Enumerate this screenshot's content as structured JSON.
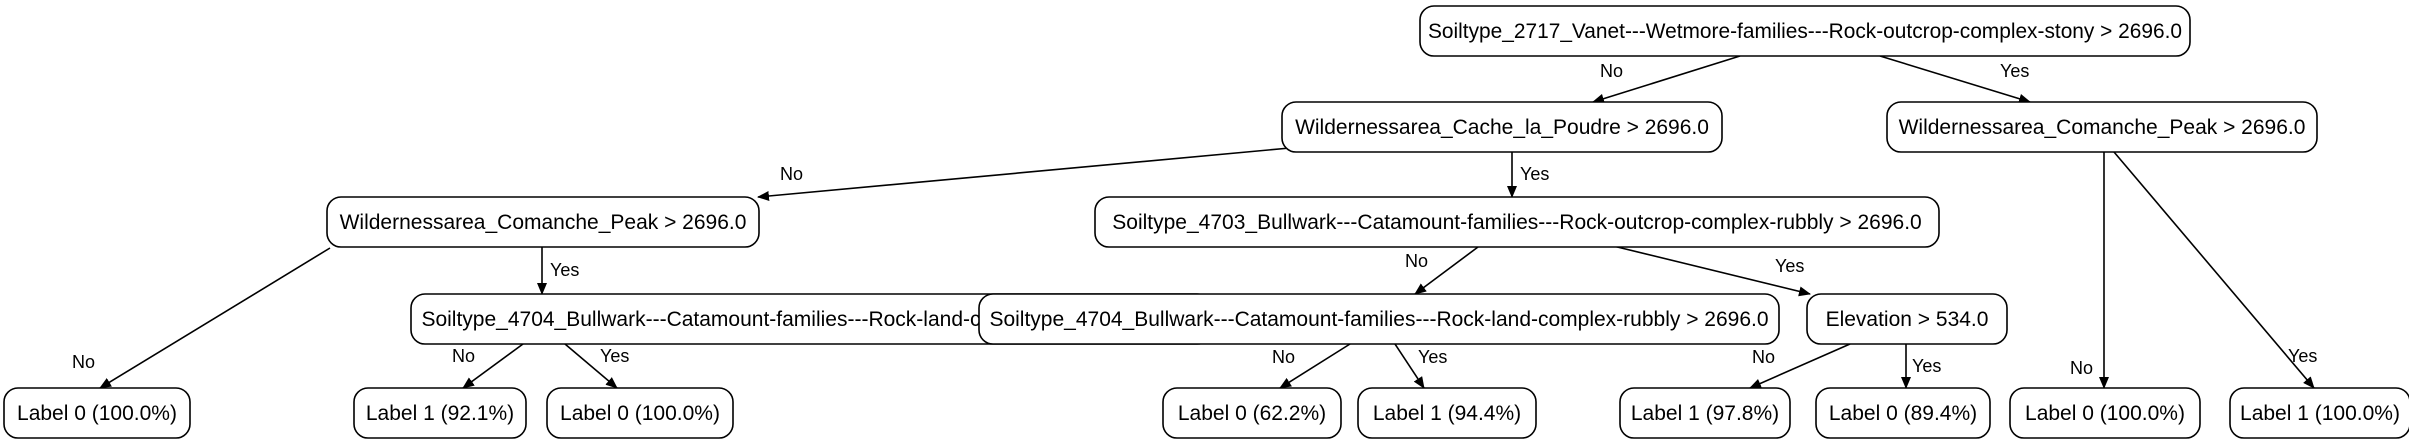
{
  "nodes": [
    {
      "id": "n0",
      "label": "Soiltype_2717_Vanet---Wetmore-families---Rock-outcrop-complex-stony > 2696.0"
    },
    {
      "id": "n1",
      "label": "Wildernessarea_Cache_la_Poudre > 2696.0"
    },
    {
      "id": "n2",
      "label": "Wildernessarea_Comanche_Peak > 2696.0"
    },
    {
      "id": "n3",
      "label": "Wildernessarea_Comanche_Peak > 2696.0"
    },
    {
      "id": "n4",
      "label": "Soiltype_4703_Bullwark---Catamount-families---Rock-outcrop-complex-rubbly > 2696.0"
    },
    {
      "id": "n5",
      "label": "Soiltype_4704_Bullwark---Catamount-families---Rock-land-complex-rubbly > 2696.0"
    },
    {
      "id": "n6",
      "label": "Soiltype_4704_Bullwark---Catamount-families---Rock-land-complex-rubbly > 2696.0"
    },
    {
      "id": "n7",
      "label": "Elevation > 534.0"
    },
    {
      "id": "l1",
      "label": "Label 0 (100.0%)"
    },
    {
      "id": "l2",
      "label": "Label 1 (92.1%)"
    },
    {
      "id": "l3",
      "label": "Label 0 (100.0%)"
    },
    {
      "id": "l4",
      "label": "Label 0 (62.2%)"
    },
    {
      "id": "l5",
      "label": "Label 1 (94.4%)"
    },
    {
      "id": "l6",
      "label": "Label 1 (97.8%)"
    },
    {
      "id": "l7",
      "label": "Label 0 (89.4%)"
    },
    {
      "id": "l8",
      "label": "Label 0 (100.0%)"
    },
    {
      "id": "l9",
      "label": "Label 1 (100.0%)"
    }
  ],
  "edges": [
    {
      "from": "n0",
      "to": "n1",
      "label": "No"
    },
    {
      "from": "n0",
      "to": "n2",
      "label": "Yes"
    },
    {
      "from": "n1",
      "to": "n3",
      "label": "No"
    },
    {
      "from": "n1",
      "to": "n4",
      "label": "Yes"
    },
    {
      "from": "n2",
      "to": "l8",
      "label": "No"
    },
    {
      "from": "n2",
      "to": "l9",
      "label": "Yes"
    },
    {
      "from": "n3",
      "to": "l1",
      "label": "No"
    },
    {
      "from": "n3",
      "to": "n5",
      "label": "Yes"
    },
    {
      "from": "n5",
      "to": "l2",
      "label": "No"
    },
    {
      "from": "n5",
      "to": "l3",
      "label": "Yes"
    },
    {
      "from": "n4",
      "to": "n6",
      "label": "No"
    },
    {
      "from": "n4",
      "to": "n7",
      "label": "Yes"
    },
    {
      "from": "n6",
      "to": "l4",
      "label": "No"
    },
    {
      "from": "n6",
      "to": "l5",
      "label": "Yes"
    },
    {
      "from": "n7",
      "to": "l6",
      "label": "No"
    },
    {
      "from": "n7",
      "to": "l7",
      "label": "Yes"
    }
  ]
}
